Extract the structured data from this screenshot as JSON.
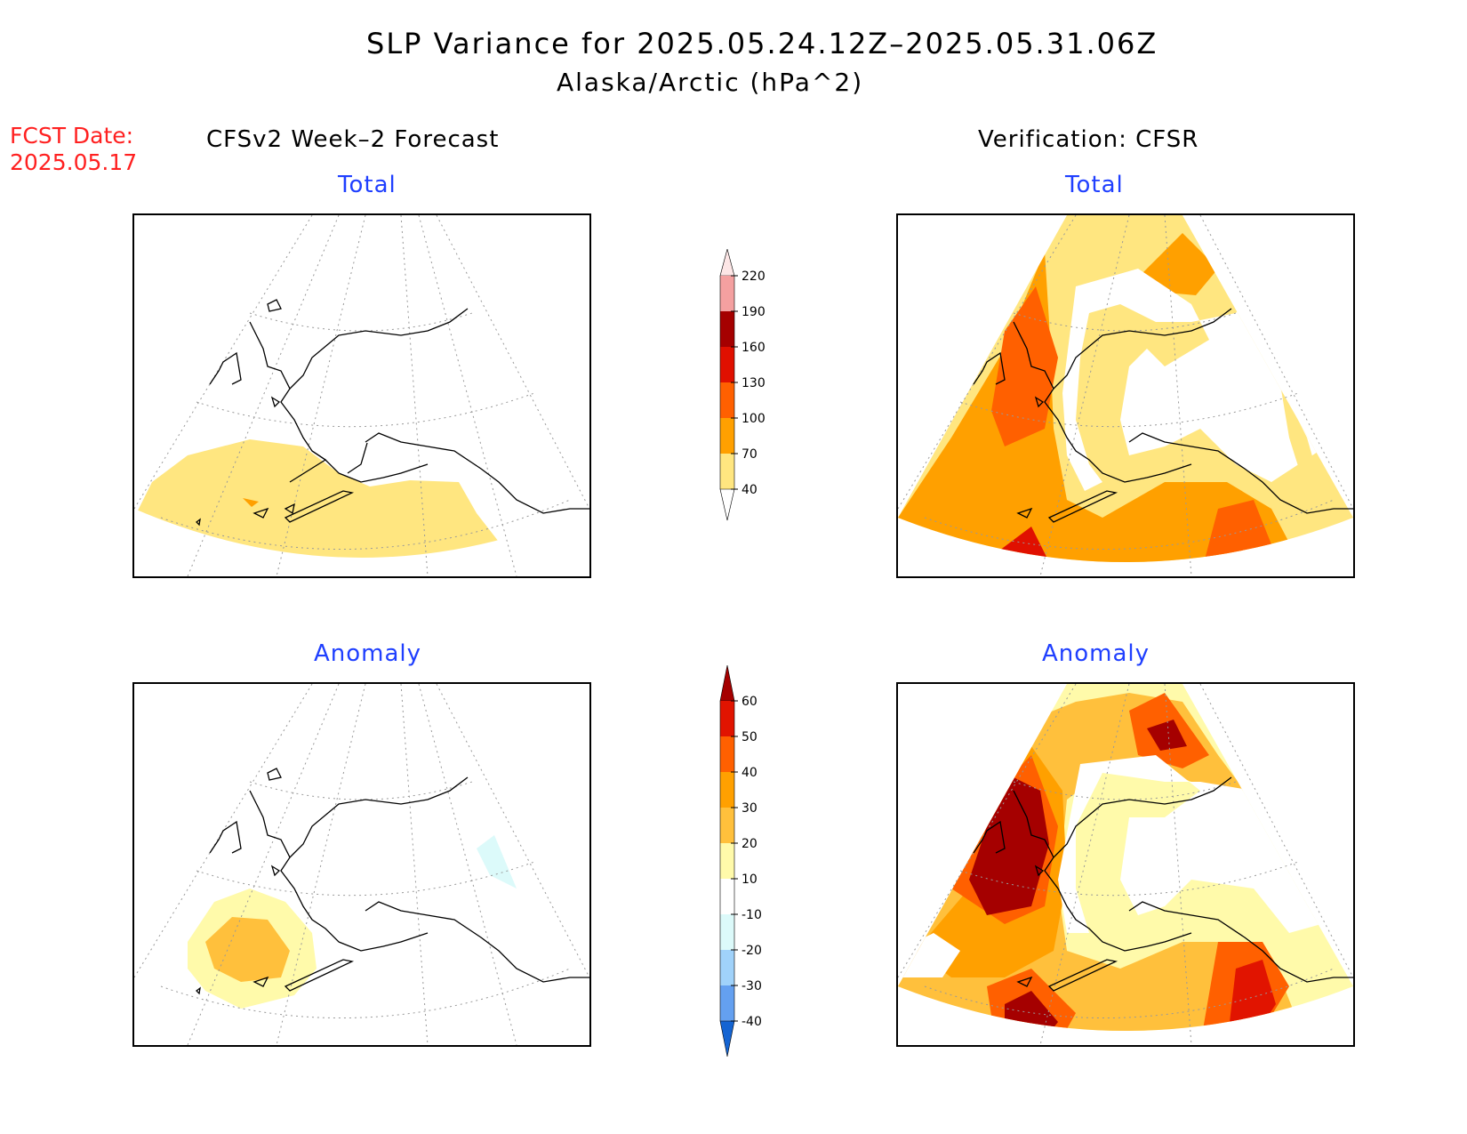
{
  "header": {
    "title": "SLP Variance for 2025.05.24.12Z–2025.05.31.06Z",
    "subtitle": "Alaska/Arctic (hPa^2)",
    "fcst_label": "FCST Date:",
    "fcst_date": "2025.05.17"
  },
  "columns": {
    "left": "CFSv2 Week–2 Forecast",
    "right": "Verification: CFSR"
  },
  "panels": {
    "total_left": "Total",
    "total_right": "Total",
    "anom_left": "Anomaly",
    "anom_right": "Anomaly"
  },
  "colorbars": {
    "total": {
      "labels": [
        "40",
        "70",
        "100",
        "130",
        "160",
        "190",
        "220"
      ],
      "colors": [
        "#ffe680",
        "#ffa000",
        "#ff6000",
        "#e01000",
        "#a50000",
        "#f4a0a0",
        "#fde6e6"
      ]
    },
    "anomaly": {
      "labels": [
        "-40",
        "-30",
        "-20",
        "-10",
        "10",
        "20",
        "30",
        "40",
        "50",
        "60"
      ],
      "colors": [
        "#1464d2",
        "#1e6ee6",
        "#64a0f0",
        "#a0d2fa",
        "#dcfafa",
        "#ffffff",
        "#fffaaa",
        "#ffc03c",
        "#ffa000",
        "#ff6000",
        "#e11400",
        "#a50000"
      ]
    }
  },
  "colors": {
    "c40": "#ffe680",
    "c70": "#ffa000",
    "c100": "#ff6000",
    "c130": "#e01000",
    "a10": "#fffaaa",
    "a20": "#ffc03c",
    "a30": "#ffa000",
    "a40": "#ff6000",
    "a50": "#e11400",
    "a60": "#a50000",
    "aneg10": "#dcfafa"
  }
}
